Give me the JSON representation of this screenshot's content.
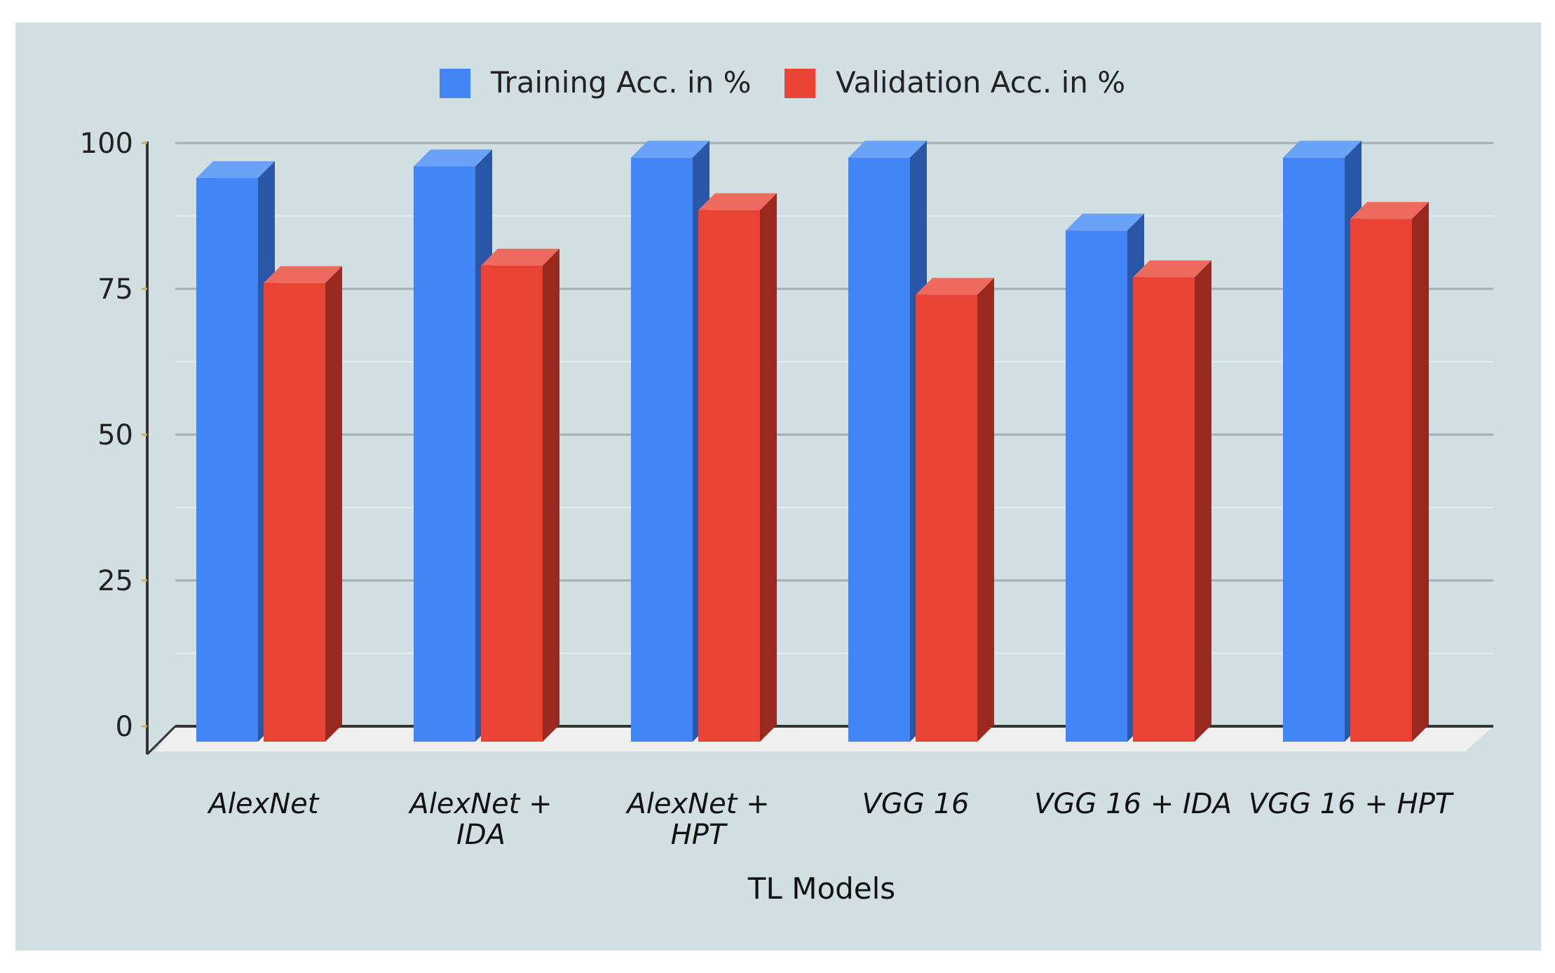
{
  "chart_data": {
    "type": "bar",
    "title": "",
    "xlabel": "TL Models",
    "ylabel": "",
    "ylim": [
      0,
      100
    ],
    "yticks": [
      0,
      25,
      50,
      75,
      100
    ],
    "grid": true,
    "legend_position": "top-center",
    "categories": [
      "AlexNet",
      "AlexNet + IDA",
      "AlexNet + HPT",
      "VGG 16",
      "VGG 16 + IDA",
      "VGG 16 + HPT"
    ],
    "category_lines": [
      [
        "AlexNet"
      ],
      [
        "AlexNet +",
        "IDA"
      ],
      [
        "AlexNet +",
        "HPT"
      ],
      [
        "VGG 16"
      ],
      [
        "VGG 16 + IDA"
      ],
      [
        "VGG 16 + HPT"
      ]
    ],
    "series": [
      {
        "name": "Training Acc. in %",
        "color": "#4285f4",
        "side_color": "#2a56a8",
        "top_color": "#6aa2f7",
        "values": [
          94,
          96,
          97.5,
          97.5,
          85,
          97.5
        ]
      },
      {
        "name": "Validation Acc. in %",
        "color": "#ea4335",
        "side_color": "#9a2a20",
        "top_color": "#ef6a5e",
        "values": [
          76,
          79,
          88.5,
          74,
          77,
          87
        ]
      }
    ]
  }
}
